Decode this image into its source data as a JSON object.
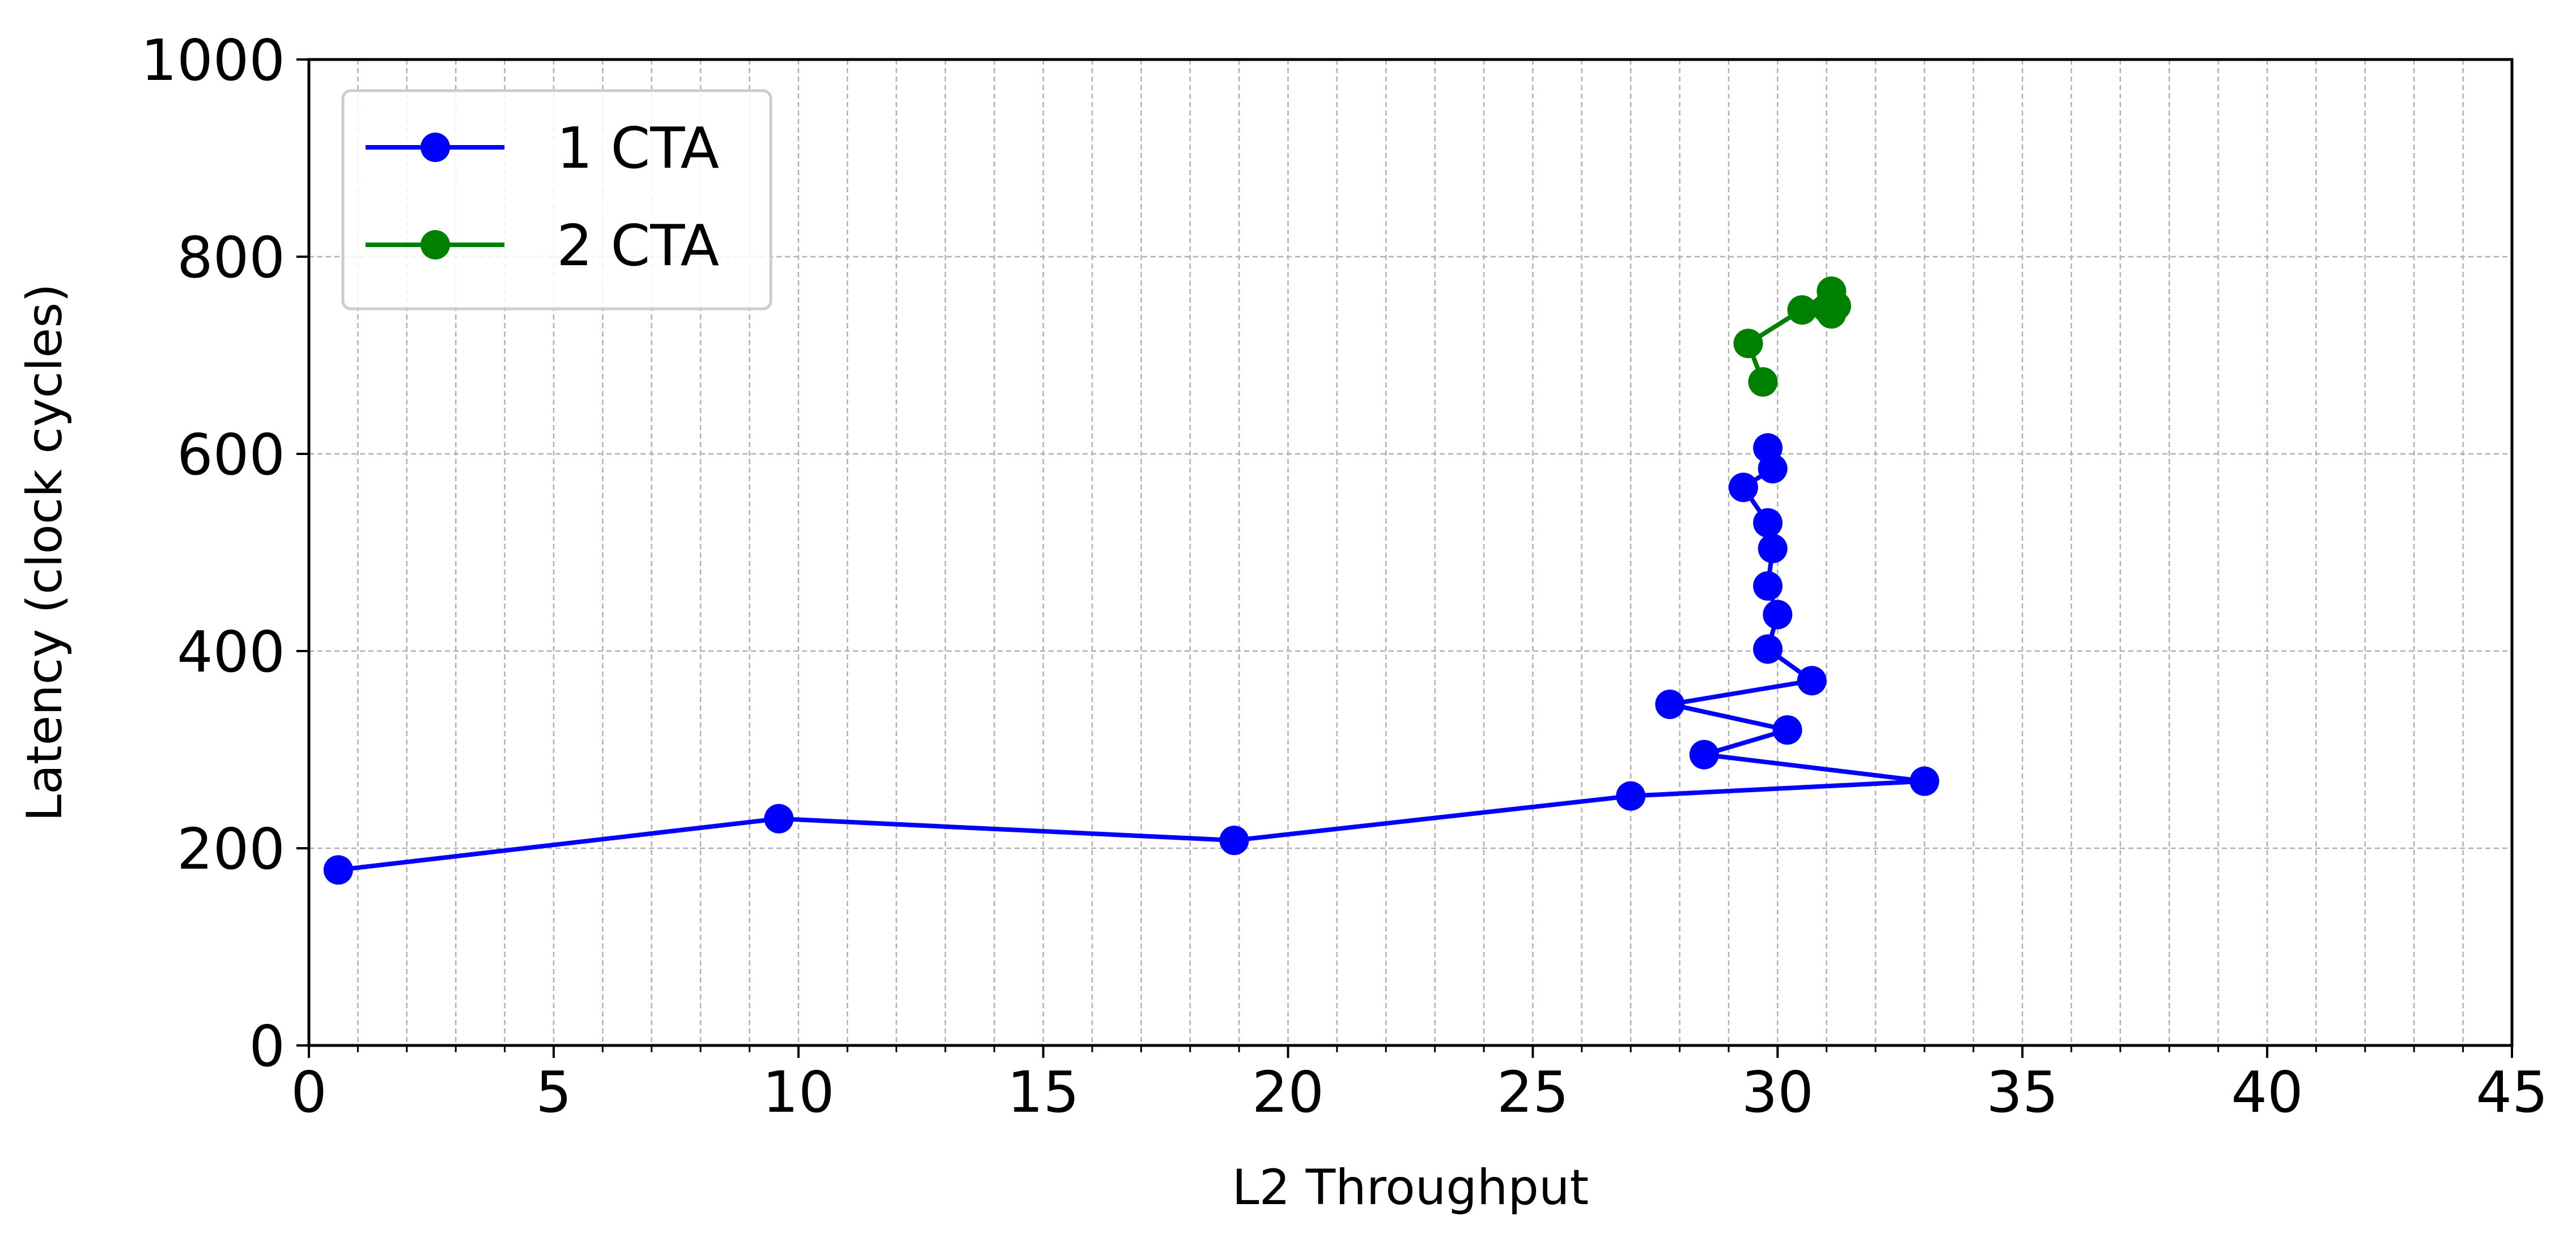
{
  "chart_data": {
    "type": "line",
    "title": "",
    "xlabel": "L2 Throughput",
    "ylabel": "Latency (clock cycles)",
    "xlim": [
      0,
      45
    ],
    "ylim": [
      0,
      1000
    ],
    "x_major_ticks": [
      0,
      5,
      10,
      15,
      20,
      25,
      30,
      35,
      40,
      45
    ],
    "x_tick_labels": [
      "0",
      "5",
      "10",
      "15",
      "20",
      "25",
      "30",
      "35",
      "40",
      "45"
    ],
    "x_minor_step": 1,
    "y_major_ticks": [
      0,
      200,
      400,
      600,
      800,
      1000
    ],
    "y_tick_labels": [
      "0",
      "200",
      "400",
      "600",
      "800",
      "1000"
    ],
    "grid": true,
    "legend_position": "top-left",
    "series": [
      {
        "name": "1 CTA",
        "color": "#0000ff",
        "marker": "circle",
        "x": [
          0.6,
          9.6,
          18.9,
          27.0,
          33.0,
          28.5,
          30.2,
          27.8,
          30.7,
          29.8,
          30.0,
          29.8,
          29.9,
          29.8,
          29.3,
          29.9,
          29.8
        ],
        "y": [
          178,
          230,
          208,
          253,
          268,
          295,
          320,
          346,
          370,
          402,
          437,
          466,
          504,
          530,
          566,
          585,
          606
        ]
      },
      {
        "name": "2 CTA",
        "color": "#008000",
        "marker": "circle",
        "x": [
          29.7,
          29.4,
          31.1,
          30.5,
          31.1,
          31.2,
          31.0
        ],
        "y": [
          673,
          712,
          765,
          746,
          742,
          750,
          748
        ]
      }
    ]
  }
}
